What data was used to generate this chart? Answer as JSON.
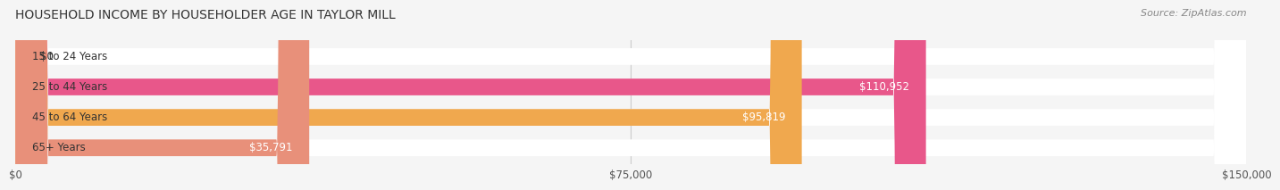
{
  "title": "HOUSEHOLD INCOME BY HOUSEHOLDER AGE IN TAYLOR MILL",
  "source": "Source: ZipAtlas.com",
  "categories": [
    "15 to 24 Years",
    "25 to 44 Years",
    "45 to 64 Years",
    "65+ Years"
  ],
  "values": [
    0,
    110952,
    95819,
    35791
  ],
  "bar_colors": [
    "#a0a8d4",
    "#e8578a",
    "#f0a84e",
    "#e8907a"
  ],
  "bar_bg_color": "#f0f0f0",
  "value_labels": [
    "$0",
    "$110,952",
    "$95,819",
    "$35,791"
  ],
  "xlim": [
    0,
    150000
  ],
  "xticks": [
    0,
    75000,
    150000
  ],
  "xtick_labels": [
    "$0",
    "$75,000",
    "$150,000"
  ],
  "figsize": [
    14.06,
    2.33
  ],
  "background_color": "#f5f5f5",
  "title_fontsize": 10,
  "label_fontsize": 8.5,
  "value_fontsize": 8.5,
  "source_fontsize": 8
}
